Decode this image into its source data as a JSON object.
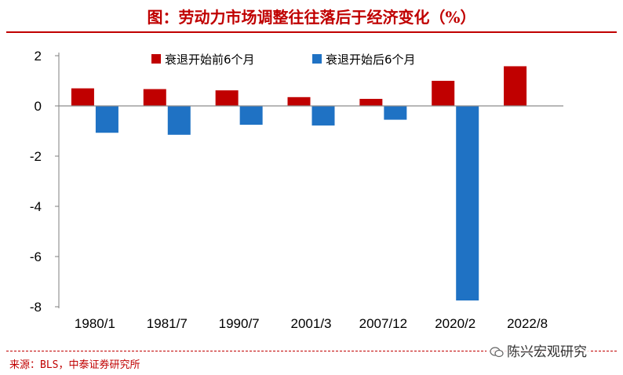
{
  "header": {
    "title": "图：劳动力市场调整往往落后于经济变化（%）"
  },
  "chart_data": {
    "type": "bar",
    "categories": [
      "1980/1",
      "1981/7",
      "1990/7",
      "2001/3",
      "2007/12",
      "2020/2",
      "2022/8"
    ],
    "series": [
      {
        "name": "衰退开始前6个月",
        "values": [
          0.7,
          0.67,
          0.62,
          0.35,
          0.28,
          1.0,
          1.58
        ],
        "color": "#c00000"
      },
      {
        "name": "衰退开始后6个月",
        "values": [
          -1.07,
          -1.15,
          -0.75,
          -0.78,
          -0.55,
          -7.75,
          null
        ],
        "color": "#1f72c4"
      }
    ],
    "ylim": [
      -8,
      2
    ],
    "yticks": [
      2,
      0,
      -2,
      -4,
      -6,
      -8
    ],
    "legend_position": "top",
    "grid": false
  },
  "footer": {
    "source": "来源：BLS，中泰证券研究所",
    "watermark": "陈兴宏观研究"
  }
}
